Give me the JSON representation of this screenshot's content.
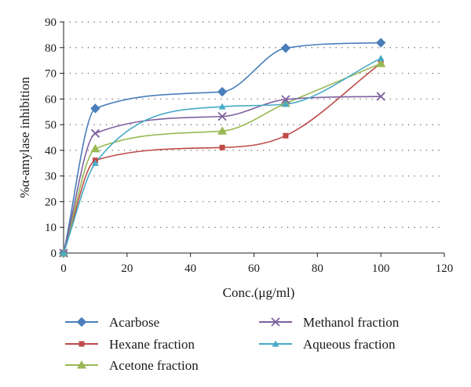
{
  "chart_data": {
    "type": "line",
    "smooth": true,
    "xlabel": "Conc.(μg/ml)",
    "ylabel": "%α-amylase inhibition",
    "xlim": [
      0,
      120
    ],
    "ylim": [
      0,
      90
    ],
    "xticks": [
      0,
      20,
      40,
      60,
      80,
      100,
      120
    ],
    "yticks": [
      0,
      10,
      20,
      30,
      40,
      50,
      60,
      70,
      80,
      90
    ],
    "grid": "horizontal dotted",
    "legend_position": "bottom",
    "series": [
      {
        "name": "Acarbose",
        "color": "#4a7ebb",
        "marker": "diamond",
        "x": [
          0,
          10,
          50,
          70,
          100
        ],
        "y": [
          0,
          56.3,
          62.8,
          79.8,
          81.9
        ]
      },
      {
        "name": "Hexane fraction",
        "color": "#be4b48",
        "marker": "square",
        "x": [
          0,
          10,
          50,
          70,
          100
        ],
        "y": [
          0,
          36.1,
          41.1,
          45.7,
          73.9
        ]
      },
      {
        "name": "Acetone fraction",
        "color": "#98b954",
        "marker": "triangle",
        "x": [
          0,
          10,
          50,
          70,
          100
        ],
        "y": [
          0,
          40.6,
          47.5,
          58.3,
          73.8
        ]
      },
      {
        "name": "Methanol fraction",
        "color": "#7d60a0",
        "marker": "x",
        "x": [
          0,
          10,
          50,
          70,
          100
        ],
        "y": [
          0,
          46.6,
          53.2,
          59.8,
          61.0
        ]
      },
      {
        "name": "Aqueous fraction",
        "color": "#46aac5",
        "marker": "triangle-small",
        "x": [
          0,
          10,
          50,
          70,
          100
        ],
        "y": [
          0,
          35.0,
          57.0,
          58.0,
          75.8
        ]
      }
    ]
  }
}
